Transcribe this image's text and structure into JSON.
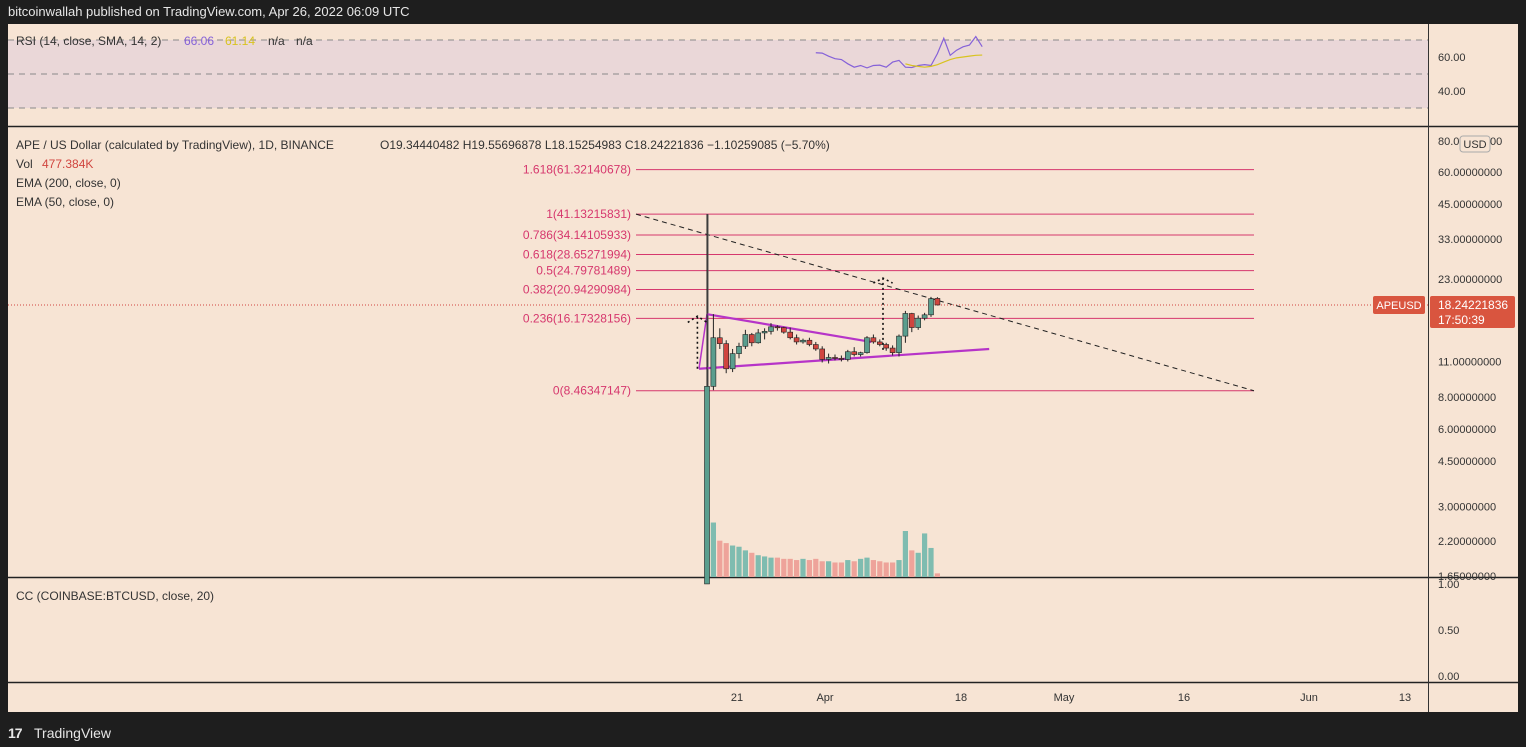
{
  "header": {
    "text": "bitcoinwallah published on TradingView.com, Apr 26, 2022 06:09 UTC"
  },
  "footer": {
    "logo": "17",
    "brand": "TradingView"
  },
  "rsi": {
    "label": "RSI (14, close, SMA, 14, 2)",
    "value": "66.06",
    "sma_value": "61.14",
    "na1": "n/a",
    "na2": "n/a",
    "ticks": [
      "60.00",
      "40.00"
    ],
    "levels": [
      70,
      50,
      30
    ],
    "ylim": [
      22,
      77
    ],
    "rsi_series": [
      [
        0,
        62.5
      ],
      [
        1,
        62.3
      ],
      [
        2,
        60.5
      ],
      [
        3,
        59
      ],
      [
        4,
        58.5
      ],
      [
        5,
        56
      ],
      [
        6,
        54
      ],
      [
        7,
        55
      ],
      [
        8,
        53.6
      ],
      [
        9,
        55
      ],
      [
        10,
        55.2
      ],
      [
        11,
        54
      ],
      [
        12,
        57
      ],
      [
        13,
        58
      ],
      [
        14,
        54
      ],
      [
        15,
        53.8
      ],
      [
        16,
        55
      ],
      [
        17,
        55.5
      ],
      [
        18,
        55
      ],
      [
        19,
        62
      ],
      [
        20,
        71
      ],
      [
        21,
        61
      ],
      [
        22,
        64
      ],
      [
        23,
        66
      ],
      [
        24,
        67
      ],
      [
        25,
        72
      ],
      [
        26,
        66.06
      ]
    ],
    "sma_series": [
      [
        14,
        56
      ],
      [
        15,
        55
      ],
      [
        16,
        54.5
      ],
      [
        17,
        54
      ],
      [
        18,
        54.5
      ],
      [
        19,
        55.5
      ],
      [
        20,
        57
      ],
      [
        21,
        58.5
      ],
      [
        22,
        59.5
      ],
      [
        23,
        60
      ],
      [
        24,
        60.5
      ],
      [
        25,
        61
      ],
      [
        26,
        61.14
      ]
    ]
  },
  "main": {
    "title": "APE / US Dollar (calculated by TradingView), 1D, BINANCE",
    "ohlc": "O19.34440482  H19.55696878  L18.15254983  C18.24221836  −1.10259085 (−5.70%)",
    "vol_label": "Vol",
    "vol_value": "477.384K",
    "ema200": "EMA (200, close, 0)",
    "ema50": "EMA (50, close, 0)",
    "currency": "USD",
    "price_ticks": [
      "80.00000000",
      "60.00000000",
      "45.00000000",
      "33.00000000",
      "23.00000000",
      "11.00000000",
      "8.00000000",
      "6.00000000",
      "4.50000000",
      "3.00000000",
      "2.20000000",
      "1.65000000"
    ],
    "symbol_tag": "APEUSD",
    "last_price": "18.24221836",
    "countdown": "17:50:39"
  },
  "fib_levels": [
    {
      "label": "1.618(61.32140678)",
      "price": 61.32140678
    },
    {
      "label": "1(41.13215831)",
      "price": 41.13215831
    },
    {
      "label": "0.786(34.14105933)",
      "price": 34.14105933
    },
    {
      "label": "0.618(28.65271994)",
      "price": 28.65271994
    },
    {
      "label": "0.5(24.79781489)",
      "price": 24.79781489
    },
    {
      "label": "0.382(20.94290984)",
      "price": 20.94290984
    },
    {
      "label": "0.236(16.17328156)",
      "price": 16.17328156
    },
    {
      "label": "0(8.46347147)",
      "price": 8.46347147
    }
  ],
  "cc": {
    "label": "CC (COINBASE:BTCUSD, close, 20)",
    "ticks": [
      "1.00",
      "0.50",
      "0.00"
    ]
  },
  "x_axis": {
    "ticks": [
      "21",
      "Apr",
      "18",
      "May",
      "16",
      "Jun",
      "13"
    ]
  },
  "colors": {
    "background": "#f7e4d4",
    "up": "#5a9e8e",
    "down": "#d0453f",
    "fib": "#d6376d",
    "triangle": "#b634c8",
    "rsi": "#8561d8",
    "rsi_sma": "#d8c31f",
    "tag": "#d9553f"
  },
  "chart_data": {
    "type": "candlestick",
    "title": "APE / US Dollar (calculated by TradingView), 1D, BINANCE",
    "x_start_date": "2022-03-17",
    "yscale": "log",
    "ylim": [
      1.5,
      85
    ],
    "candles": [
      {
        "o": 1.5,
        "h": 41.13,
        "l": 1.5,
        "c": 8.8
      },
      {
        "o": 8.8,
        "h": 16.8,
        "l": 8.5,
        "c": 13.6
      },
      {
        "o": 13.6,
        "h": 14.8,
        "l": 12.3,
        "c": 12.9
      },
      {
        "o": 12.9,
        "h": 13.3,
        "l": 9.9,
        "c": 10.3
      },
      {
        "o": 10.3,
        "h": 12.3,
        "l": 10.0,
        "c": 11.8
      },
      {
        "o": 11.8,
        "h": 13.0,
        "l": 11.3,
        "c": 12.6
      },
      {
        "o": 12.6,
        "h": 14.6,
        "l": 12.3,
        "c": 14.0
      },
      {
        "o": 14.0,
        "h": 14.2,
        "l": 12.6,
        "c": 13.0
      },
      {
        "o": 13.0,
        "h": 14.7,
        "l": 12.9,
        "c": 14.2
      },
      {
        "o": 14.2,
        "h": 14.8,
        "l": 13.4,
        "c": 14.4
      },
      {
        "o": 14.4,
        "h": 15.5,
        "l": 14.0,
        "c": 15.0
      },
      {
        "o": 15.0,
        "h": 15.2,
        "l": 14.5,
        "c": 14.9
      },
      {
        "o": 14.9,
        "h": 15.0,
        "l": 14.1,
        "c": 14.3
      },
      {
        "o": 14.3,
        "h": 14.9,
        "l": 13.4,
        "c": 13.6
      },
      {
        "o": 13.6,
        "h": 14.0,
        "l": 12.8,
        "c": 13.1
      },
      {
        "o": 13.1,
        "h": 13.5,
        "l": 12.9,
        "c": 13.3
      },
      {
        "o": 13.3,
        "h": 13.6,
        "l": 12.6,
        "c": 12.8
      },
      {
        "o": 12.8,
        "h": 13.1,
        "l": 12.1,
        "c": 12.3
      },
      {
        "o": 12.3,
        "h": 12.6,
        "l": 10.9,
        "c": 11.2
      },
      {
        "o": 11.2,
        "h": 11.8,
        "l": 10.8,
        "c": 11.4
      },
      {
        "o": 11.4,
        "h": 11.7,
        "l": 11.1,
        "c": 11.3
      },
      {
        "o": 11.3,
        "h": 11.6,
        "l": 11.0,
        "c": 11.2
      },
      {
        "o": 11.2,
        "h": 12.2,
        "l": 11.0,
        "c": 12.0
      },
      {
        "o": 12.0,
        "h": 12.5,
        "l": 11.5,
        "c": 11.7
      },
      {
        "o": 11.7,
        "h": 12.0,
        "l": 11.5,
        "c": 11.9
      },
      {
        "o": 11.9,
        "h": 13.8,
        "l": 11.8,
        "c": 13.6
      },
      {
        "o": 13.6,
        "h": 14.0,
        "l": 12.9,
        "c": 13.1
      },
      {
        "o": 13.1,
        "h": 13.4,
        "l": 12.6,
        "c": 12.8
      },
      {
        "o": 12.8,
        "h": 13.0,
        "l": 12.1,
        "c": 12.4
      },
      {
        "o": 12.4,
        "h": 12.7,
        "l": 11.6,
        "c": 11.9
      },
      {
        "o": 11.9,
        "h": 14.0,
        "l": 11.5,
        "c": 13.8
      },
      {
        "o": 13.8,
        "h": 17.3,
        "l": 13.0,
        "c": 16.9
      },
      {
        "o": 16.9,
        "h": 17.0,
        "l": 14.3,
        "c": 14.9
      },
      {
        "o": 14.9,
        "h": 16.6,
        "l": 14.6,
        "c": 16.2
      },
      {
        "o": 16.2,
        "h": 17.0,
        "l": 15.9,
        "c": 16.7
      },
      {
        "o": 16.7,
        "h": 19.6,
        "l": 16.4,
        "c": 19.3
      },
      {
        "o": 19.34,
        "h": 19.56,
        "l": 18.15,
        "c": 18.24
      }
    ],
    "volume": [
      95,
      45,
      30,
      28,
      26,
      25,
      22,
      20,
      18,
      17,
      16,
      16,
      15,
      15,
      14,
      15,
      14,
      15,
      13,
      13,
      12,
      12,
      14,
      13,
      15,
      16,
      14,
      13,
      12,
      12,
      14,
      38,
      22,
      20,
      36,
      24,
      3
    ],
    "fibonacci": [
      {
        "ratio": 1.618,
        "price": 61.32140678
      },
      {
        "ratio": 1,
        "price": 41.13215831
      },
      {
        "ratio": 0.786,
        "price": 34.14105933
      },
      {
        "ratio": 0.618,
        "price": 28.65271994
      },
      {
        "ratio": 0.5,
        "price": 24.79781489
      },
      {
        "ratio": 0.382,
        "price": 20.94290984
      },
      {
        "ratio": 0.236,
        "price": 16.17328156
      },
      {
        "ratio": 0,
        "price": 8.46347147
      }
    ],
    "triangle": {
      "upper": [
        {
          "day": 0,
          "price": 16.8
        },
        {
          "day": 23,
          "price": 13.1
        }
      ],
      "lower": [
        {
          "day": 0,
          "price": 10.3
        },
        {
          "day": 23,
          "price": 12.3
        }
      ]
    },
    "trendline": [
      {
        "day": 0,
        "price": 41.13
      },
      {
        "day": 70,
        "price": 8.46
      }
    ],
    "last_price": 18.24221836
  }
}
